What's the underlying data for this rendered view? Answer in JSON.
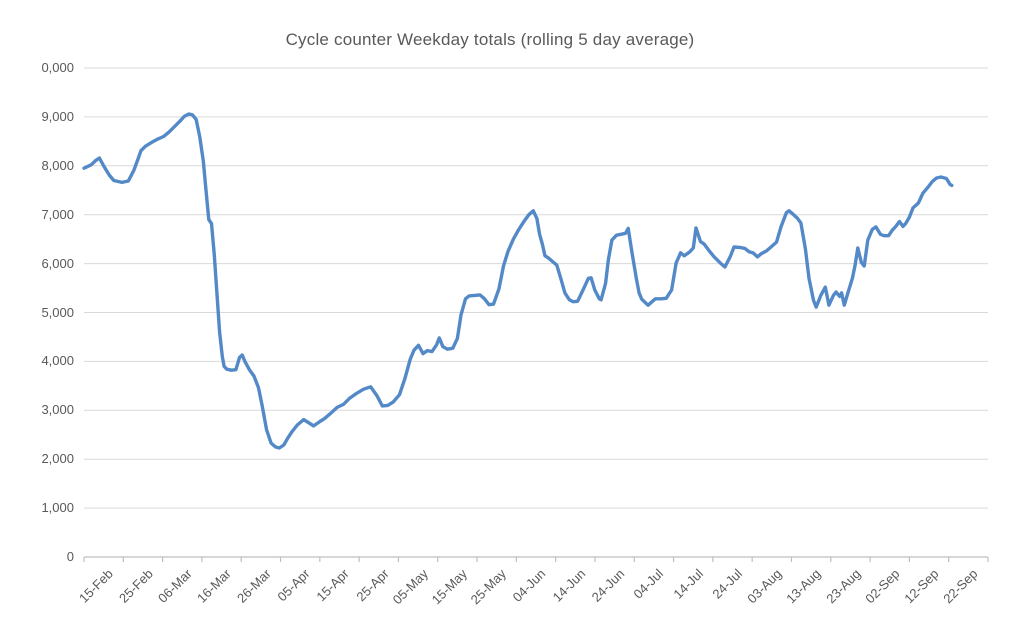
{
  "chart_data": {
    "type": "line",
    "title": "Cycle counter Weekday totals (rolling 5 day average)",
    "xlabel": "",
    "ylabel": "",
    "ylim": [
      0,
      10000
    ],
    "grid": true,
    "legend": false,
    "y_tick_labels": [
      "0",
      "1,000",
      "2,000",
      "3,000",
      "4,000",
      "5,000",
      "6,000",
      "7,000",
      "8,000",
      "9,000",
      "0,000"
    ],
    "x_tick_labels": [
      "15-Feb",
      "25-Feb",
      "06-Mar",
      "16-Mar",
      "26-Mar",
      "05-Apr",
      "15-Apr",
      "25-Apr",
      "05-May",
      "15-May",
      "25-May",
      "04-Jun",
      "14-Jun",
      "24-Jun",
      "04-Jul",
      "14-Jul",
      "24-Jul",
      "03-Aug",
      "13-Aug",
      "23-Aug",
      "02-Sep",
      "12-Sep",
      "22-Sep"
    ],
    "colors": {
      "line": "#5489c8",
      "gridline": "#d9d9d9",
      "axis": "#bfbfbf",
      "text": "#595959"
    },
    "series": [
      {
        "points": [
          [
            0.0,
            7950
          ],
          [
            0.008,
            8020
          ],
          [
            0.013,
            8110
          ],
          [
            0.017,
            8160
          ],
          [
            0.022,
            7990
          ],
          [
            0.028,
            7810
          ],
          [
            0.033,
            7700
          ],
          [
            0.042,
            7660
          ],
          [
            0.049,
            7690
          ],
          [
            0.055,
            7900
          ],
          [
            0.06,
            8150
          ],
          [
            0.063,
            8310
          ],
          [
            0.068,
            8400
          ],
          [
            0.075,
            8480
          ],
          [
            0.082,
            8550
          ],
          [
            0.088,
            8600
          ],
          [
            0.094,
            8690
          ],
          [
            0.1,
            8800
          ],
          [
            0.106,
            8910
          ],
          [
            0.111,
            9010
          ],
          [
            0.116,
            9060
          ],
          [
            0.12,
            9040
          ],
          [
            0.124,
            8950
          ],
          [
            0.128,
            8600
          ],
          [
            0.132,
            8100
          ],
          [
            0.135,
            7500
          ],
          [
            0.138,
            6900
          ],
          [
            0.141,
            6820
          ],
          [
            0.144,
            6200
          ],
          [
            0.147,
            5400
          ],
          [
            0.15,
            4600
          ],
          [
            0.153,
            4100
          ],
          [
            0.155,
            3900
          ],
          [
            0.158,
            3840
          ],
          [
            0.163,
            3820
          ],
          [
            0.168,
            3830
          ],
          [
            0.172,
            4080
          ],
          [
            0.175,
            4130
          ],
          [
            0.178,
            4000
          ],
          [
            0.183,
            3830
          ],
          [
            0.188,
            3700
          ],
          [
            0.193,
            3460
          ],
          [
            0.197,
            3100
          ],
          [
            0.202,
            2600
          ],
          [
            0.207,
            2330
          ],
          [
            0.212,
            2250
          ],
          [
            0.216,
            2230
          ],
          [
            0.221,
            2290
          ],
          [
            0.225,
            2420
          ],
          [
            0.23,
            2560
          ],
          [
            0.236,
            2700
          ],
          [
            0.243,
            2810
          ],
          [
            0.249,
            2740
          ],
          [
            0.254,
            2680
          ],
          [
            0.261,
            2770
          ],
          [
            0.266,
            2830
          ],
          [
            0.273,
            2940
          ],
          [
            0.28,
            3060
          ],
          [
            0.287,
            3120
          ],
          [
            0.294,
            3250
          ],
          [
            0.301,
            3340
          ],
          [
            0.309,
            3430
          ],
          [
            0.317,
            3480
          ],
          [
            0.324,
            3300
          ],
          [
            0.33,
            3090
          ],
          [
            0.336,
            3100
          ],
          [
            0.342,
            3170
          ],
          [
            0.349,
            3320
          ],
          [
            0.355,
            3650
          ],
          [
            0.361,
            4050
          ],
          [
            0.365,
            4230
          ],
          [
            0.37,
            4330
          ],
          [
            0.375,
            4160
          ],
          [
            0.38,
            4220
          ],
          [
            0.385,
            4200
          ],
          [
            0.39,
            4340
          ],
          [
            0.393,
            4480
          ],
          [
            0.397,
            4300
          ],
          [
            0.402,
            4250
          ],
          [
            0.408,
            4270
          ],
          [
            0.413,
            4470
          ],
          [
            0.417,
            4950
          ],
          [
            0.422,
            5280
          ],
          [
            0.426,
            5340
          ],
          [
            0.432,
            5350
          ],
          [
            0.438,
            5360
          ],
          [
            0.443,
            5280
          ],
          [
            0.448,
            5160
          ],
          [
            0.453,
            5170
          ],
          [
            0.459,
            5480
          ],
          [
            0.464,
            5950
          ],
          [
            0.469,
            6250
          ],
          [
            0.475,
            6500
          ],
          [
            0.481,
            6700
          ],
          [
            0.487,
            6870
          ],
          [
            0.492,
            7000
          ],
          [
            0.497,
            7080
          ],
          [
            0.501,
            6920
          ],
          [
            0.504,
            6600
          ],
          [
            0.507,
            6400
          ],
          [
            0.51,
            6160
          ],
          [
            0.514,
            6110
          ],
          [
            0.519,
            6030
          ],
          [
            0.523,
            5970
          ],
          [
            0.528,
            5660
          ],
          [
            0.532,
            5400
          ],
          [
            0.537,
            5260
          ],
          [
            0.541,
            5220
          ],
          [
            0.546,
            5230
          ],
          [
            0.552,
            5460
          ],
          [
            0.558,
            5700
          ],
          [
            0.561,
            5710
          ],
          [
            0.565,
            5460
          ],
          [
            0.57,
            5280
          ],
          [
            0.572,
            5260
          ],
          [
            0.577,
            5600
          ],
          [
            0.58,
            6070
          ],
          [
            0.584,
            6480
          ],
          [
            0.589,
            6580
          ],
          [
            0.594,
            6600
          ],
          [
            0.599,
            6620
          ],
          [
            0.602,
            6720
          ],
          [
            0.606,
            6250
          ],
          [
            0.611,
            5700
          ],
          [
            0.614,
            5400
          ],
          [
            0.617,
            5270
          ],
          [
            0.624,
            5150
          ],
          [
            0.632,
            5280
          ],
          [
            0.638,
            5280
          ],
          [
            0.644,
            5290
          ],
          [
            0.65,
            5460
          ],
          [
            0.655,
            6010
          ],
          [
            0.66,
            6220
          ],
          [
            0.664,
            6160
          ],
          [
            0.67,
            6240
          ],
          [
            0.674,
            6320
          ],
          [
            0.677,
            6730
          ],
          [
            0.682,
            6450
          ],
          [
            0.686,
            6400
          ],
          [
            0.692,
            6250
          ],
          [
            0.697,
            6140
          ],
          [
            0.704,
            6010
          ],
          [
            0.709,
            5930
          ],
          [
            0.715,
            6150
          ],
          [
            0.719,
            6340
          ],
          [
            0.726,
            6330
          ],
          [
            0.731,
            6310
          ],
          [
            0.736,
            6240
          ],
          [
            0.74,
            6220
          ],
          [
            0.745,
            6140
          ],
          [
            0.749,
            6200
          ],
          [
            0.755,
            6260
          ],
          [
            0.76,
            6340
          ],
          [
            0.766,
            6440
          ],
          [
            0.771,
            6750
          ],
          [
            0.777,
            7040
          ],
          [
            0.78,
            7080
          ],
          [
            0.785,
            7000
          ],
          [
            0.789,
            6930
          ],
          [
            0.793,
            6830
          ],
          [
            0.798,
            6300
          ],
          [
            0.802,
            5700
          ],
          [
            0.807,
            5250
          ],
          [
            0.81,
            5110
          ],
          [
            0.815,
            5350
          ],
          [
            0.82,
            5520
          ],
          [
            0.824,
            5150
          ],
          [
            0.829,
            5350
          ],
          [
            0.832,
            5420
          ],
          [
            0.836,
            5330
          ],
          [
            0.838,
            5400
          ],
          [
            0.841,
            5150
          ],
          [
            0.845,
            5400
          ],
          [
            0.85,
            5700
          ],
          [
            0.853,
            5970
          ],
          [
            0.856,
            6320
          ],
          [
            0.86,
            6020
          ],
          [
            0.863,
            5950
          ],
          [
            0.867,
            6480
          ],
          [
            0.872,
            6700
          ],
          [
            0.876,
            6750
          ],
          [
            0.881,
            6600
          ],
          [
            0.885,
            6570
          ],
          [
            0.89,
            6570
          ],
          [
            0.894,
            6680
          ],
          [
            0.898,
            6760
          ],
          [
            0.902,
            6860
          ],
          [
            0.906,
            6760
          ],
          [
            0.909,
            6820
          ],
          [
            0.913,
            6950
          ],
          [
            0.917,
            7140
          ],
          [
            0.923,
            7240
          ],
          [
            0.928,
            7440
          ],
          [
            0.934,
            7570
          ],
          [
            0.938,
            7670
          ],
          [
            0.943,
            7750
          ],
          [
            0.948,
            7770
          ],
          [
            0.954,
            7740
          ],
          [
            0.958,
            7620
          ],
          [
            0.96,
            7600
          ]
        ]
      }
    ]
  }
}
